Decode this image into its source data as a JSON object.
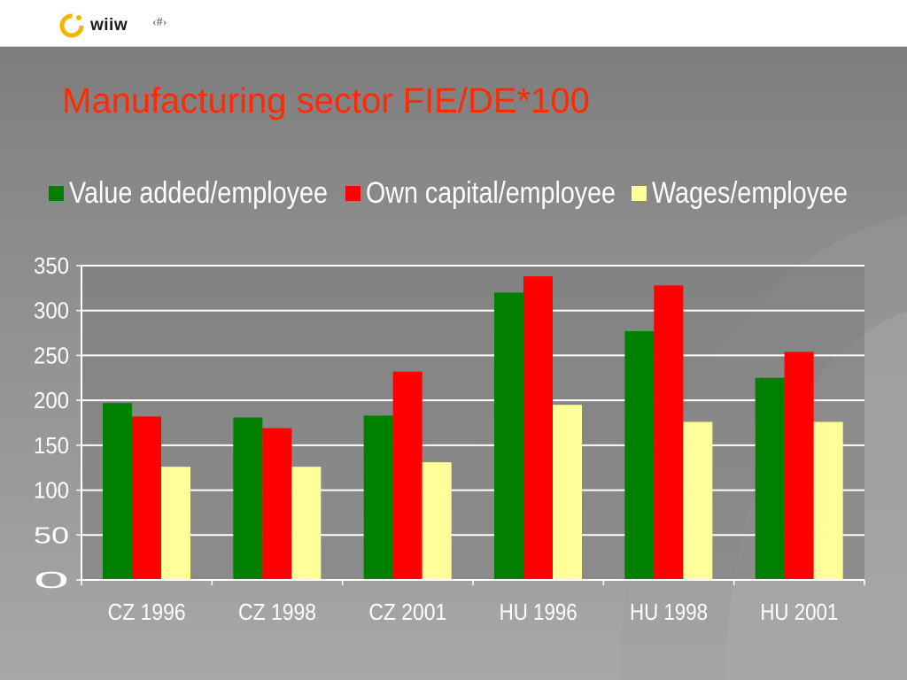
{
  "header": {
    "logo_text": "wiiw",
    "page_number": "‹#›",
    "logo_color": "#f2b600"
  },
  "slide": {
    "title": "Manufacturing sector FIE/DE*100",
    "title_color": "#ff2a00"
  },
  "chart_data": {
    "type": "bar",
    "title": "",
    "xlabel": "",
    "ylabel": "",
    "categories": [
      "CZ 1996",
      "CZ 1998",
      "CZ 2001",
      "HU 1996",
      "HU 1998",
      "HU 2001"
    ],
    "series": [
      {
        "name": "Value added/employee",
        "color": "#008000",
        "values": [
          197,
          181,
          183,
          320,
          277,
          225
        ]
      },
      {
        "name": "Own capital/employee",
        "color": "#ff0000",
        "values": [
          182,
          169,
          232,
          338,
          328,
          254
        ]
      },
      {
        "name": "Wages/employee",
        "color": "#ffff99",
        "values": [
          126,
          126,
          131,
          195,
          176,
          176
        ]
      }
    ],
    "ylim": [
      0,
      350
    ],
    "yticks": [
      "0",
      "50",
      "100",
      "150",
      "200",
      "250",
      "300",
      "350"
    ],
    "grid": true,
    "legend_position": "top"
  }
}
